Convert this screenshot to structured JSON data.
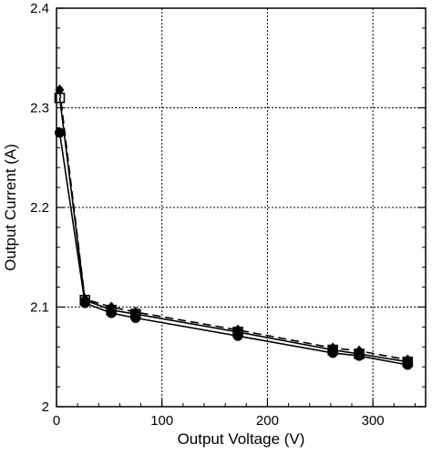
{
  "chart_data": {
    "type": "line",
    "title": "",
    "xlabel": "Output Voltage (V)",
    "ylabel": "Output Current (A)",
    "xlim": [
      0,
      350
    ],
    "ylim": [
      2.0,
      2.4
    ],
    "xticks": [
      0,
      100,
      200,
      300
    ],
    "xtick_labels": [
      "0",
      "100",
      "200",
      "300"
    ],
    "yticks": [
      2.0,
      2.1,
      2.2,
      2.3,
      2.4
    ],
    "ytick_labels": [
      "2",
      "2.1",
      "2.2",
      "2.3",
      "2.4"
    ],
    "grid": true,
    "legend": "none",
    "series": [
      {
        "marker": "circle",
        "line": "solid",
        "color": "#000000",
        "x": [
          3,
          27,
          52,
          75,
          172,
          262,
          287,
          333
        ],
        "y": [
          2.275,
          2.104,
          2.094,
          2.089,
          2.071,
          2.054,
          2.051,
          2.042
        ]
      },
      {
        "marker": "square",
        "line": "solid",
        "color": "#000000",
        "x": [
          3,
          27,
          52,
          75,
          172,
          262,
          287,
          333
        ],
        "y": [
          2.31,
          2.107,
          2.097,
          2.093,
          2.075,
          2.057,
          2.053,
          2.045
        ]
      },
      {
        "marker": "diamond",
        "line": "dashed",
        "color": "#000000",
        "x": [
          3,
          27,
          52,
          75,
          172,
          262,
          287,
          333
        ],
        "y": [
          2.318,
          2.108,
          2.1,
          2.095,
          2.077,
          2.059,
          2.056,
          2.047
        ]
      }
    ]
  }
}
